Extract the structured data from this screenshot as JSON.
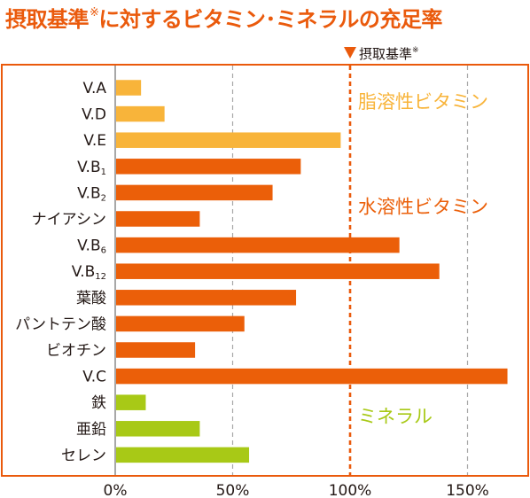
{
  "title": {
    "main": "摂取基準",
    "mark": "※",
    "rest": "に対するビタミン･ミネラルの充足率"
  },
  "reference": {
    "label": "摂取基準",
    "mark": "※",
    "value": 100
  },
  "colors": {
    "fat_soluble": "#f8b43a",
    "water_soluble": "#eb5f09",
    "mineral": "#a8c916",
    "frame": "#ea5a0c",
    "grid": "#a8a8a8",
    "text": "#231815"
  },
  "chart_data": {
    "type": "bar",
    "orientation": "horizontal",
    "xlim": [
      0,
      175
    ],
    "x_ticks": [
      {
        "value": 0,
        "label": "0%"
      },
      {
        "value": 50,
        "label": "50%"
      },
      {
        "value": 100,
        "label": "100%"
      },
      {
        "value": 150,
        "label": "150%"
      }
    ],
    "grid": true,
    "groups": [
      {
        "name": "脂溶性ビタミン",
        "color_key": "fat_soluble",
        "label_row": 0
      },
      {
        "name": "水溶性ビタミン",
        "color_key": "water_soluble",
        "label_row": 4
      },
      {
        "name": "ミネラル",
        "color_key": "mineral",
        "label_row": 12
      }
    ],
    "categories": [
      {
        "label": "V.A",
        "sub": "",
        "group": 0,
        "value": 11
      },
      {
        "label": "V.D",
        "sub": "",
        "group": 0,
        "value": 21
      },
      {
        "label": "V.E",
        "sub": "",
        "group": 0,
        "value": 96
      },
      {
        "label": "V.B",
        "sub": "1",
        "group": 1,
        "value": 79
      },
      {
        "label": "V.B",
        "sub": "2",
        "group": 1,
        "value": 67
      },
      {
        "label": "ナイアシン",
        "sub": "",
        "group": 1,
        "value": 36
      },
      {
        "label": "V.B",
        "sub": "6",
        "group": 1,
        "value": 121
      },
      {
        "label": "V.B",
        "sub": "12",
        "group": 1,
        "value": 138
      },
      {
        "label": "葉酸",
        "sub": "",
        "group": 1,
        "value": 77
      },
      {
        "label": "パントテン酸",
        "sub": "",
        "group": 1,
        "value": 55
      },
      {
        "label": "ビオチン",
        "sub": "",
        "group": 1,
        "value": 34
      },
      {
        "label": "V.C",
        "sub": "",
        "group": 1,
        "value": 167
      },
      {
        "label": "鉄",
        "sub": "",
        "group": 2,
        "value": 13
      },
      {
        "label": "亜鉛",
        "sub": "",
        "group": 2,
        "value": 36
      },
      {
        "label": "セレン",
        "sub": "",
        "group": 2,
        "value": 57
      }
    ]
  }
}
